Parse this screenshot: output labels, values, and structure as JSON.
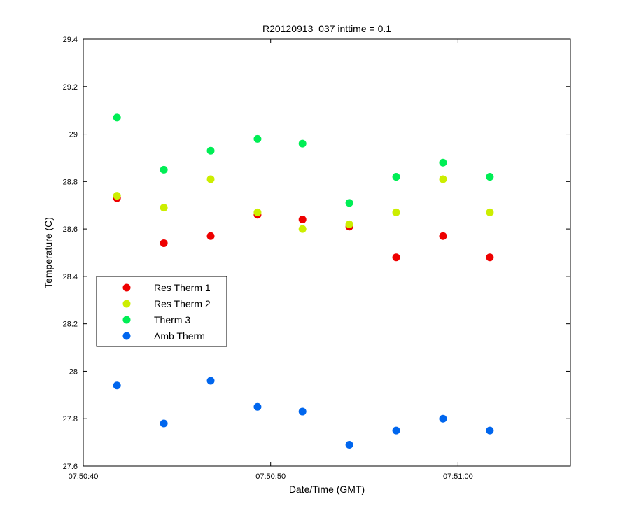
{
  "chart_data": {
    "type": "scatter",
    "title": "R20120913_037 inttime = 0.1",
    "xlabel": "Date/Time (GMT)",
    "ylabel": "Temperature (C)",
    "xlim": [
      "07:50:40",
      "07:51:06"
    ],
    "ylim": [
      27.6,
      29.4
    ],
    "x_ticks": [
      "07:50:40",
      "07:50:50",
      "07:51:00"
    ],
    "y_ticks": [
      "27.6",
      "27.8",
      "28",
      "28.2",
      "28.4",
      "28.6",
      "28.8",
      "29",
      "29.2",
      "29.4"
    ],
    "x": [
      "07:50:41.8",
      "07:50:44.3",
      "07:50:46.8",
      "07:50:49.3",
      "07:50:51.7",
      "07:50:54.2",
      "07:50:56.7",
      "07:50:59.2",
      "07:51:01.7"
    ],
    "series": [
      {
        "name": "Res Therm 1",
        "color": "#ee0000",
        "values": [
          28.73,
          28.54,
          28.57,
          28.66,
          28.64,
          28.61,
          28.48,
          28.57,
          28.48
        ]
      },
      {
        "name": "Res Therm 2",
        "color": "#ccee00",
        "values": [
          28.74,
          28.69,
          28.81,
          28.67,
          28.6,
          28.62,
          28.67,
          28.81,
          28.67
        ]
      },
      {
        "name": "Therm 3",
        "color": "#00ee55",
        "values": [
          29.07,
          28.85,
          28.93,
          28.98,
          28.96,
          28.71,
          28.82,
          28.88,
          28.82
        ]
      },
      {
        "name": "Amb Therm",
        "color": "#0066ee",
        "values": [
          27.94,
          27.78,
          27.96,
          27.85,
          27.83,
          27.69,
          27.75,
          27.8,
          27.75
        ]
      }
    ],
    "legend_position": "center-left",
    "grid": false
  }
}
